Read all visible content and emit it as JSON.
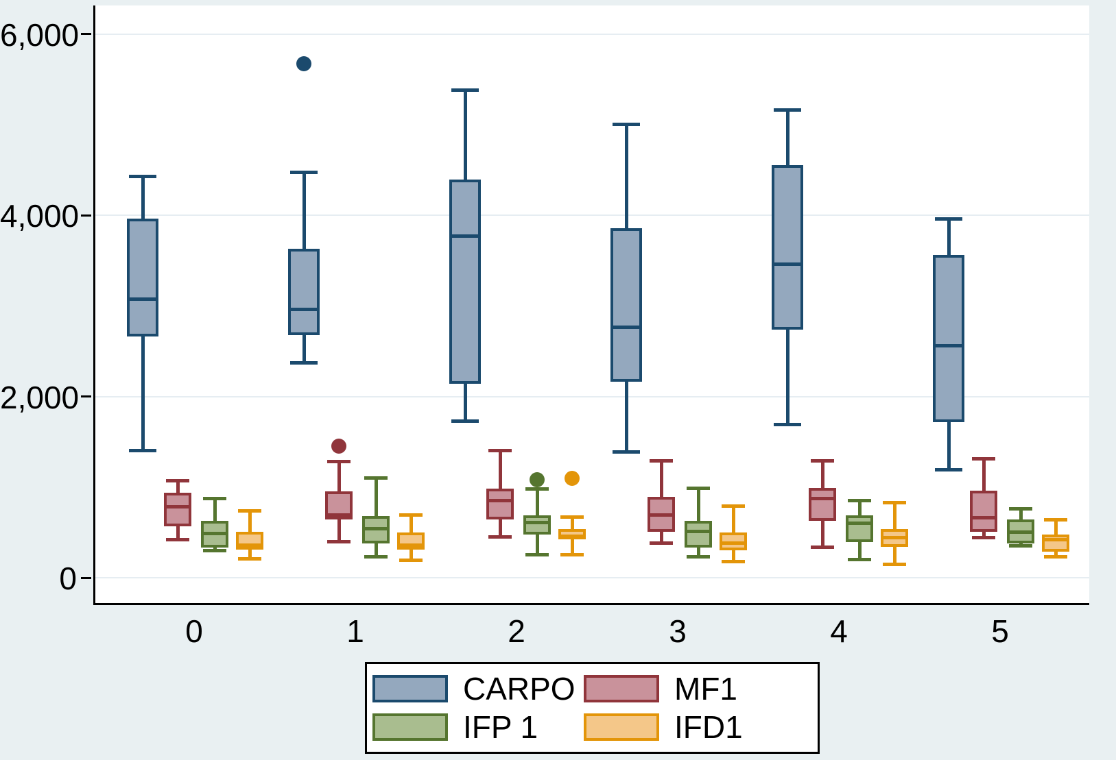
{
  "figure": {
    "background_color": "#e9f0f2",
    "plot_background_color": "#ffffff",
    "grid_color": "#e6edf2",
    "axis_color": "#000000",
    "text_color": "#000000"
  },
  "chart_data": {
    "type": "boxplot",
    "orientation": "vertical",
    "title": "",
    "xlabel": "",
    "ylabel": "",
    "grid": "horizontal",
    "x_categories": [
      "0",
      "1",
      "2",
      "3",
      "4",
      "5"
    ],
    "y_axis": {
      "ticks": [
        0,
        2000,
        4000,
        6000
      ],
      "tick_labels": [
        "0",
        "2,000",
        "4,000",
        "6,000"
      ],
      "range": [
        -280,
        6320
      ]
    },
    "legend": {
      "position": "bottom-center",
      "columns": 2,
      "entries": [
        "CARPO",
        "MF1",
        "IFP 1",
        "IFD1"
      ]
    },
    "series": [
      {
        "name": "CARPO",
        "fill": "#94a8be",
        "stroke": "#1b4a6d",
        "boxes": [
          {
            "low": 1400,
            "q1": 2660,
            "median": 3070,
            "q3": 3960,
            "high": 4430,
            "outliers": []
          },
          {
            "low": 2370,
            "q1": 2680,
            "median": 2960,
            "q3": 3630,
            "high": 4470,
            "outliers": [
              5670
            ]
          },
          {
            "low": 1730,
            "q1": 2140,
            "median": 3770,
            "q3": 4390,
            "high": 5380,
            "outliers": []
          },
          {
            "low": 1390,
            "q1": 2160,
            "median": 2760,
            "q3": 3860,
            "high": 5000,
            "outliers": []
          },
          {
            "low": 1690,
            "q1": 2740,
            "median": 3460,
            "q3": 4550,
            "high": 5160,
            "outliers": []
          },
          {
            "low": 1190,
            "q1": 1720,
            "median": 2560,
            "q3": 3560,
            "high": 3960,
            "outliers": []
          }
        ]
      },
      {
        "name": "MF1",
        "fill": "#c9929b",
        "stroke": "#90353b",
        "boxes": [
          {
            "low": 420,
            "q1": 570,
            "median": 780,
            "q3": 940,
            "high": 1070,
            "outliers": []
          },
          {
            "low": 400,
            "q1": 640,
            "median": 690,
            "q3": 950,
            "high": 1280,
            "outliers": [
              1450
            ]
          },
          {
            "low": 450,
            "q1": 640,
            "median": 850,
            "q3": 980,
            "high": 1400,
            "outliers": []
          },
          {
            "low": 380,
            "q1": 510,
            "median": 690,
            "q3": 890,
            "high": 1290,
            "outliers": []
          },
          {
            "low": 340,
            "q1": 630,
            "median": 870,
            "q3": 990,
            "high": 1290,
            "outliers": []
          },
          {
            "low": 440,
            "q1": 510,
            "median": 660,
            "q3": 960,
            "high": 1310,
            "outliers": []
          }
        ]
      },
      {
        "name": "IFP 1",
        "fill": "#a9bd8f",
        "stroke": "#55752f",
        "boxes": [
          {
            "low": 300,
            "q1": 330,
            "median": 490,
            "q3": 630,
            "high": 870,
            "outliers": []
          },
          {
            "low": 230,
            "q1": 380,
            "median": 540,
            "q3": 680,
            "high": 1100,
            "outliers": []
          },
          {
            "low": 250,
            "q1": 480,
            "median": 610,
            "q3": 690,
            "high": 980,
            "outliers": [
              1080
            ]
          },
          {
            "low": 230,
            "q1": 330,
            "median": 510,
            "q3": 630,
            "high": 990,
            "outliers": []
          },
          {
            "low": 200,
            "q1": 390,
            "median": 600,
            "q3": 690,
            "high": 850,
            "outliers": []
          },
          {
            "low": 350,
            "q1": 380,
            "median": 500,
            "q3": 640,
            "high": 760,
            "outliers": []
          }
        ]
      },
      {
        "name": "IFD1",
        "fill": "#f4c789",
        "stroke": "#e39509",
        "boxes": [
          {
            "low": 210,
            "q1": 310,
            "median": 360,
            "q3": 510,
            "high": 740,
            "outliers": []
          },
          {
            "low": 190,
            "q1": 310,
            "median": 360,
            "q3": 500,
            "high": 690,
            "outliers": []
          },
          {
            "low": 250,
            "q1": 420,
            "median": 455,
            "q3": 540,
            "high": 670,
            "outliers": [
              1100
            ]
          },
          {
            "low": 180,
            "q1": 300,
            "median": 380,
            "q3": 500,
            "high": 790,
            "outliers": []
          },
          {
            "low": 150,
            "q1": 340,
            "median": 440,
            "q3": 540,
            "high": 830,
            "outliers": []
          },
          {
            "low": 230,
            "q1": 290,
            "median": 420,
            "q3": 480,
            "high": 640,
            "outliers": []
          }
        ]
      }
    ]
  }
}
